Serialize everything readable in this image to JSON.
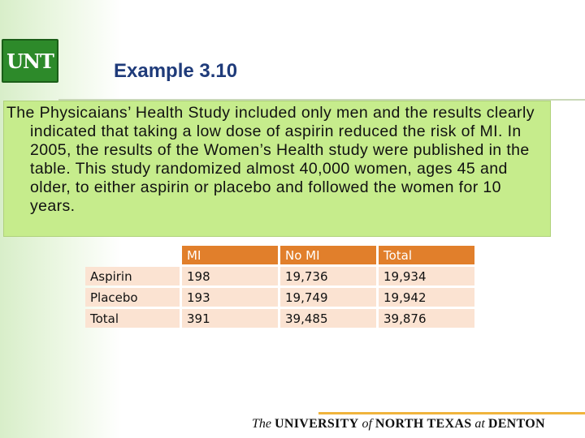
{
  "logo": {
    "text": "UNT",
    "color": "#2d8a2a"
  },
  "slide": {
    "title": "Example 3.10",
    "paragraph": "The Physicaians’ Health Study included only men and the results clearly indicated that taking a low dose of aspirin reduced the risk of MI. In 2005, the results of the Women’s Health study were published in the table. This study randomized almost 40,000 women, ages 45 and older, to either aspirin or placebo and followed the women for 10 years."
  },
  "table": {
    "headers": [
      "",
      "MI",
      "No MI",
      "Total"
    ],
    "rows": [
      [
        "Aspirin",
        "198",
        "19,736",
        "19,934"
      ],
      [
        "Placebo",
        "193",
        "19,749",
        "19,942"
      ],
      [
        "Total",
        "391",
        "39,485",
        "39,876"
      ]
    ]
  },
  "footer": {
    "the": "The",
    "university": "UNIVERSITY",
    "of": "of",
    "north_texas": "NORTH TEXAS",
    "at": "at",
    "denton": "DENTON"
  },
  "colors": {
    "title": "#1f3b7a",
    "callout_bg": "#c6ec8c",
    "header_bg": "#e17f2b",
    "cell_bg": "#fbe3d2",
    "footer_rule": "#f0b43c"
  }
}
